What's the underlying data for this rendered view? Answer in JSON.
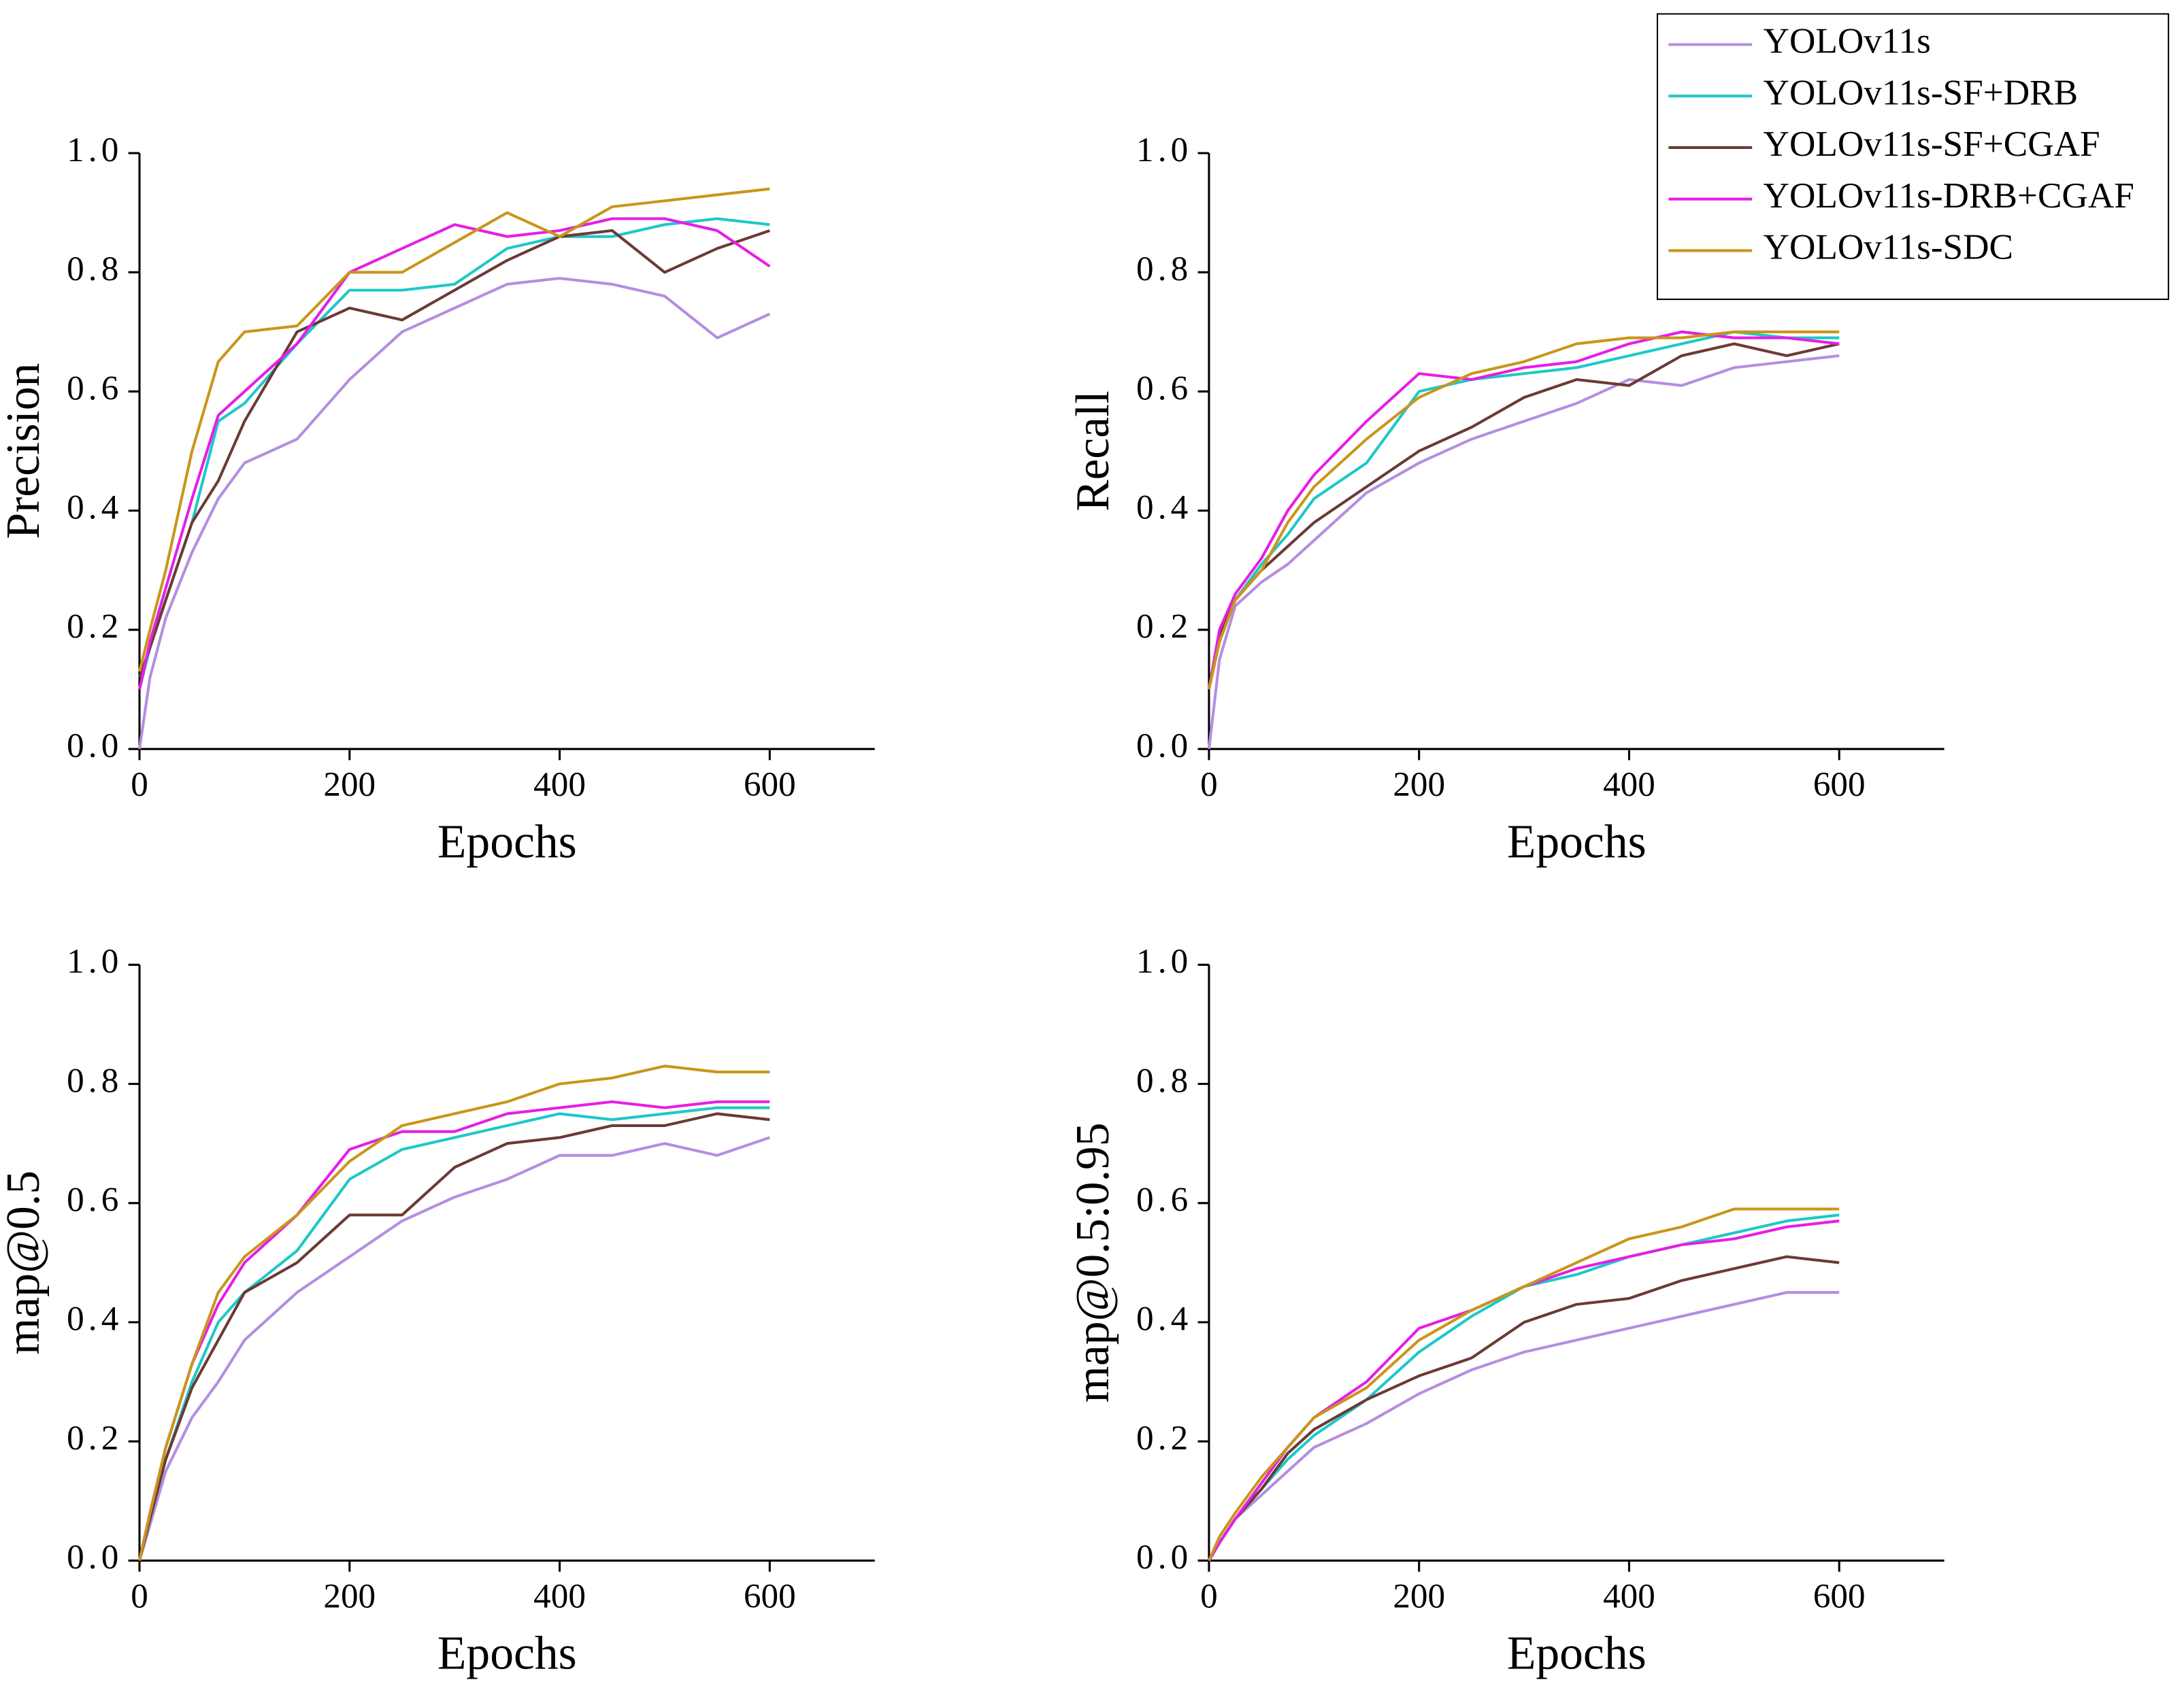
{
  "chart_data": [
    {
      "type": "line",
      "xlabel": "Epochs",
      "ylabel": "Precision",
      "legend": "top-right",
      "x": [
        0,
        10,
        25,
        50,
        75,
        100,
        150,
        200,
        250,
        300,
        350,
        400,
        450,
        500,
        550,
        600
      ],
      "xlim": [
        0,
        700
      ],
      "xticks": [
        0,
        200,
        400,
        600
      ],
      "ylim": [
        0,
        1
      ],
      "yticks": [
        {
          "value": 0,
          "label": "0.0"
        },
        0.2,
        0.4,
        0.6,
        0.8,
        {
          "value": 1,
          "label": "1.0"
        }
      ],
      "series": [
        {
          "name": "YOLOv11s",
          "color": "#b48ee0",
          "values": [
            0,
            0.12,
            0.22,
            0.33,
            0.42,
            0.48,
            0.52,
            0.62,
            0.7,
            0.74,
            0.78,
            0.79,
            0.78,
            0.76,
            0.69,
            0.73
          ]
        },
        {
          "name": "YOLOv11s-SF+DRB",
          "color": "#1ec8c8",
          "values": [
            0.1,
            0.17,
            0.25,
            0.38,
            0.55,
            0.58,
            0.68,
            0.77,
            0.77,
            0.78,
            0.84,
            0.86,
            0.86,
            0.88,
            0.89,
            0.88
          ]
        },
        {
          "name": "YOLOv11s-SF+CGAF",
          "color": "#6b3a35",
          "values": [
            0.12,
            0.17,
            0.25,
            0.38,
            0.45,
            0.55,
            0.7,
            0.74,
            0.72,
            0.77,
            0.82,
            0.86,
            0.87,
            0.8,
            0.84,
            0.87
          ]
        },
        {
          "name": "YOLOv11s-DRB+CGAF",
          "color": "#e61ee6",
          "values": [
            0.1,
            0.18,
            0.27,
            0.42,
            0.56,
            0.6,
            0.68,
            0.8,
            0.84,
            0.88,
            0.86,
            0.87,
            0.89,
            0.89,
            0.87,
            0.81
          ]
        },
        {
          "name": "YOLOv11s-SDC",
          "color": "#c8961a",
          "values": [
            0.13,
            0.2,
            0.3,
            0.5,
            0.65,
            0.7,
            0.71,
            0.8,
            0.8,
            0.85,
            0.9,
            0.86,
            0.91,
            0.92,
            0.93,
            0.94
          ]
        }
      ]
    },
    {
      "type": "line",
      "xlabel": "Epochs",
      "ylabel": "Recall",
      "x": [
        0,
        10,
        25,
        50,
        75,
        100,
        150,
        200,
        250,
        300,
        350,
        400,
        450,
        500,
        550,
        600
      ],
      "xlim": [
        0,
        700
      ],
      "xticks": [
        0,
        200,
        400,
        600
      ],
      "ylim": [
        0,
        1
      ],
      "yticks": [
        {
          "value": 0,
          "label": "0.0"
        },
        0.2,
        0.4,
        0.6,
        0.8,
        {
          "value": 1,
          "label": "1.0"
        }
      ],
      "series": [
        {
          "name": "YOLOv11s",
          "color": "#b48ee0",
          "values": [
            0,
            0.15,
            0.24,
            0.28,
            0.31,
            0.35,
            0.43,
            0.48,
            0.52,
            0.55,
            0.58,
            0.62,
            0.61,
            0.64,
            0.65,
            0.66
          ]
        },
        {
          "name": "YOLOv11s-SF+DRB",
          "color": "#1ec8c8",
          "values": [
            0.1,
            0.19,
            0.25,
            0.31,
            0.36,
            0.42,
            0.48,
            0.6,
            0.62,
            0.63,
            0.64,
            0.66,
            0.68,
            0.7,
            0.69,
            0.69
          ]
        },
        {
          "name": "YOLOv11s-SF+CGAF",
          "color": "#6b3a35",
          "values": [
            0.1,
            0.19,
            0.25,
            0.3,
            0.34,
            0.38,
            0.44,
            0.5,
            0.54,
            0.59,
            0.62,
            0.61,
            0.66,
            0.68,
            0.66,
            0.68
          ]
        },
        {
          "name": "YOLOv11s-DRB+CGAF",
          "color": "#e61ee6",
          "values": [
            0.1,
            0.2,
            0.26,
            0.32,
            0.4,
            0.46,
            0.55,
            0.63,
            0.62,
            0.64,
            0.65,
            0.68,
            0.7,
            0.69,
            0.69,
            0.68
          ]
        },
        {
          "name": "YOLOv11s-SDC",
          "color": "#c8961a",
          "values": [
            0.1,
            0.18,
            0.25,
            0.3,
            0.38,
            0.44,
            0.52,
            0.59,
            0.63,
            0.65,
            0.68,
            0.69,
            0.69,
            0.7,
            0.7,
            0.7
          ]
        }
      ]
    },
    {
      "type": "line",
      "xlabel": "Epochs",
      "ylabel": "map@0.5",
      "x": [
        0,
        10,
        25,
        50,
        75,
        100,
        150,
        200,
        250,
        300,
        350,
        400,
        450,
        500,
        550,
        600
      ],
      "xlim": [
        0,
        700
      ],
      "xticks": [
        0,
        200,
        400,
        600
      ],
      "ylim": [
        0,
        1
      ],
      "yticks": [
        {
          "value": 0,
          "label": "0.0"
        },
        0.2,
        0.4,
        0.6,
        0.8,
        {
          "value": 1,
          "label": "1.0"
        }
      ],
      "series": [
        {
          "name": "YOLOv11s",
          "color": "#b48ee0",
          "values": [
            0,
            0.06,
            0.15,
            0.24,
            0.3,
            0.37,
            0.45,
            0.51,
            0.57,
            0.61,
            0.64,
            0.68,
            0.68,
            0.7,
            0.68,
            0.71
          ]
        },
        {
          "name": "YOLOv11s-SF+DRB",
          "color": "#1ec8c8",
          "values": [
            0,
            0.07,
            0.17,
            0.3,
            0.4,
            0.45,
            0.52,
            0.64,
            0.69,
            0.71,
            0.73,
            0.75,
            0.74,
            0.75,
            0.76,
            0.76
          ]
        },
        {
          "name": "YOLOv11s-SF+CGAF",
          "color": "#6b3a35",
          "values": [
            0,
            0.07,
            0.17,
            0.29,
            0.37,
            0.45,
            0.5,
            0.58,
            0.58,
            0.66,
            0.7,
            0.71,
            0.73,
            0.73,
            0.75,
            0.74
          ]
        },
        {
          "name": "YOLOv11s-DRB+CGAF",
          "color": "#e61ee6",
          "values": [
            0,
            0.08,
            0.19,
            0.33,
            0.43,
            0.5,
            0.58,
            0.69,
            0.72,
            0.72,
            0.75,
            0.76,
            0.77,
            0.76,
            0.77,
            0.77
          ]
        },
        {
          "name": "YOLOv11s-SDC",
          "color": "#c8961a",
          "values": [
            0,
            0.08,
            0.19,
            0.33,
            0.45,
            0.51,
            0.58,
            0.67,
            0.73,
            0.75,
            0.77,
            0.8,
            0.81,
            0.83,
            0.82,
            0.82
          ]
        }
      ]
    },
    {
      "type": "line",
      "xlabel": "Epochs",
      "ylabel": "map@0.5:0.95",
      "x": [
        0,
        10,
        25,
        50,
        75,
        100,
        150,
        200,
        250,
        300,
        350,
        400,
        450,
        500,
        550,
        600
      ],
      "xlim": [
        0,
        700
      ],
      "xticks": [
        0,
        200,
        400,
        600
      ],
      "ylim": [
        0,
        1
      ],
      "yticks": [
        {
          "value": 0,
          "label": "0.0"
        },
        0.2,
        0.4,
        0.6,
        0.8,
        {
          "value": 1,
          "label": "1.0"
        }
      ],
      "series": [
        {
          "name": "YOLOv11s",
          "color": "#b48ee0",
          "values": [
            0,
            0.03,
            0.07,
            0.11,
            0.15,
            0.19,
            0.23,
            0.28,
            0.32,
            0.35,
            0.37,
            0.39,
            0.41,
            0.43,
            0.45,
            0.45
          ]
        },
        {
          "name": "YOLOv11s-SF+DRB",
          "color": "#1ec8c8",
          "values": [
            0,
            0.03,
            0.07,
            0.12,
            0.17,
            0.21,
            0.27,
            0.35,
            0.41,
            0.46,
            0.48,
            0.51,
            0.53,
            0.55,
            0.57,
            0.58
          ]
        },
        {
          "name": "YOLOv11s-SF+CGAF",
          "color": "#6b3a35",
          "values": [
            0,
            0.03,
            0.07,
            0.12,
            0.18,
            0.22,
            0.27,
            0.31,
            0.34,
            0.4,
            0.43,
            0.44,
            0.47,
            0.49,
            0.51,
            0.5
          ]
        },
        {
          "name": "YOLOv11s-DRB+CGAF",
          "color": "#e61ee6",
          "values": [
            0,
            0.03,
            0.07,
            0.13,
            0.19,
            0.24,
            0.3,
            0.39,
            0.42,
            0.46,
            0.49,
            0.51,
            0.53,
            0.54,
            0.56,
            0.57
          ]
        },
        {
          "name": "YOLOv11s-SDC",
          "color": "#c8961a",
          "values": [
            0,
            0.04,
            0.08,
            0.14,
            0.19,
            0.24,
            0.29,
            0.37,
            0.42,
            0.46,
            0.5,
            0.54,
            0.56,
            0.59,
            0.59,
            0.59
          ]
        }
      ]
    }
  ]
}
